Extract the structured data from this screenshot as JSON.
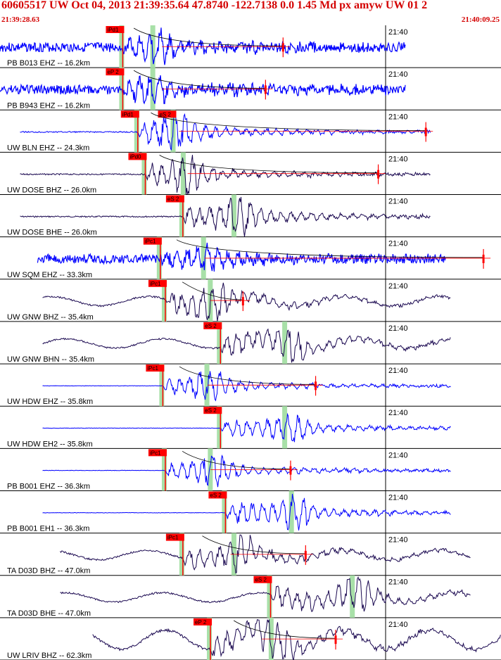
{
  "header": {
    "title": "60605517 UW Oct 04, 2013 21:39:35.64   47.8740 -122.7138  0.0 1.45 Md px amyw UW 01   2",
    "start_time": "21:39:28.63",
    "end_time": "21:40:09.25"
  },
  "time_tick_label": "21:40",
  "colors": {
    "pick": "#ff0000",
    "blue_trace": "#0000ff",
    "dark_trace": "#1a0850",
    "window": "#a8e0a8",
    "text": "#000000"
  },
  "traces": [
    {
      "label": "PB B013 EHZ -- 16.2km",
      "pick": "iPd1",
      "pick_kind": "P",
      "color": "blue",
      "style": "noisy",
      "start": 0.0,
      "end": 0.81,
      "onset": 0.245,
      "amp": 0.55,
      "decay": true,
      "duration_end": 0.565
    },
    {
      "label": "PB B943 EHZ -- 16.2km",
      "pick": "eP 2",
      "pick_kind": "P",
      "color": "blue",
      "style": "noisy",
      "start": 0.0,
      "end": 0.81,
      "onset": 0.245,
      "amp": 0.55,
      "decay": true,
      "duration_end": 0.53
    },
    {
      "label": "UW BLN EHZ -- 24.3km",
      "pick": "iPd1",
      "pick_kind": "P",
      "secondary_pick": "eS 2",
      "color": "blue",
      "style": "quiet",
      "start": 0.04,
      "end": 0.86,
      "onset": 0.275,
      "amp": 0.75,
      "decay": true,
      "duration_end": 0.85
    },
    {
      "label": "UW DOSE BHZ -- 26.0km",
      "pick": "iPd0",
      "pick_kind": "P",
      "color": "dark",
      "style": "quiet",
      "start": 0.04,
      "end": 0.86,
      "onset": 0.29,
      "amp": 0.7,
      "decay": true,
      "duration_end": 0.755
    },
    {
      "label": "UW DOSE BHE -- 26.0km",
      "pick": "eS 2",
      "pick_kind": "S",
      "color": "dark",
      "style": "quiet",
      "start": 0.04,
      "end": 0.86,
      "onset": 0.365,
      "amp": 0.8,
      "decay": false,
      "duration_end": null
    },
    {
      "label": "UW SQM EHZ -- 33.3km",
      "pick": "iPc1",
      "pick_kind": "P",
      "color": "blue",
      "style": "noisy",
      "start": 0.075,
      "end": 0.89,
      "onset": 0.32,
      "amp": 0.55,
      "decay": true,
      "duration_end": 0.965
    },
    {
      "label": "UW GNW BHZ -- 35.4km",
      "pick": "iPc1",
      "pick_kind": "P",
      "color": "dark",
      "style": "longperiod",
      "start": 0.085,
      "end": 0.9,
      "onset": 0.33,
      "amp": 0.75,
      "decay": true,
      "duration_end": 0.485
    },
    {
      "label": "UW GNW BHN -- 35.4km",
      "pick": "eS 2",
      "pick_kind": "S",
      "color": "dark",
      "style": "longperiod",
      "start": 0.085,
      "end": 0.9,
      "onset": 0.44,
      "amp": 0.75,
      "decay": false,
      "duration_end": null
    },
    {
      "label": "UW HDW EHZ -- 35.8km",
      "pick": "iPc1",
      "pick_kind": "P",
      "color": "blue",
      "style": "flat",
      "start": 0.085,
      "end": 0.9,
      "onset": 0.325,
      "amp": 0.6,
      "decay": true,
      "duration_end": 0.63
    },
    {
      "label": "UW HDW EH2 -- 35.8km",
      "pick": "eS 2",
      "pick_kind": "S",
      "color": "blue",
      "style": "flat",
      "start": 0.085,
      "end": 0.9,
      "onset": 0.44,
      "amp": 0.6,
      "decay": false,
      "duration_end": null
    },
    {
      "label": "PB B001 EHZ -- 36.3km",
      "pick": "iPc1",
      "pick_kind": "P",
      "color": "blue",
      "style": "flat",
      "start": 0.085,
      "end": 0.9,
      "onset": 0.33,
      "amp": 0.6,
      "decay": true,
      "duration_end": 0.58
    },
    {
      "label": "PB B001 EH1 -- 36.3km",
      "pick": "eS 2",
      "pick_kind": "S",
      "color": "blue",
      "style": "flat",
      "start": 0.085,
      "end": 0.9,
      "onset": 0.45,
      "amp": 0.7,
      "decay": false,
      "duration_end": null
    },
    {
      "label": "TA D03D BHZ -- 47.0km",
      "pick": "iPc1",
      "pick_kind": "P",
      "color": "dark",
      "style": "longperiod",
      "start": 0.12,
      "end": 0.94,
      "onset": 0.365,
      "amp": 0.75,
      "decay": true,
      "duration_end": 0.61
    },
    {
      "label": "TA D03D BHE -- 47.0km",
      "pick": "eS 2",
      "pick_kind": "S",
      "color": "dark",
      "style": "longperiod",
      "start": 0.12,
      "end": 0.94,
      "onset": 0.54,
      "amp": 0.8,
      "decay": false,
      "duration_end": null
    },
    {
      "label": "UW LRIV BHZ -- 62.3km",
      "pick": "eP 2",
      "pick_kind": "P",
      "color": "dark",
      "style": "longperiod-big",
      "start": 0.185,
      "end": 1.0,
      "onset": 0.42,
      "amp": 0.9,
      "decay": true,
      "duration_end": 0.67
    }
  ]
}
